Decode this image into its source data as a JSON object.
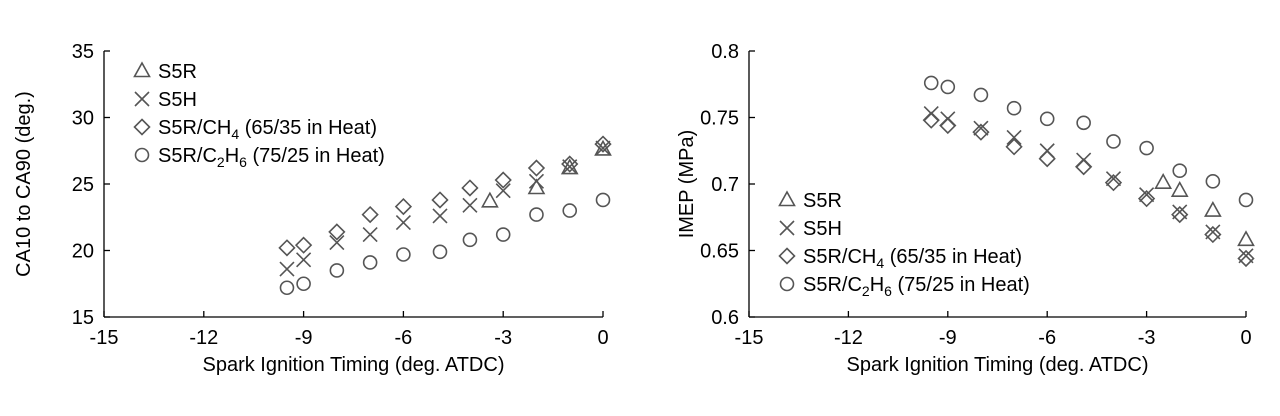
{
  "chart_data": [
    {
      "type": "scatter",
      "title": "",
      "xlabel": "Spark Ignition Timing (deg. ATDC)",
      "ylabel": "CA10 to CA90 (deg.)",
      "xlim": [
        -15,
        0
      ],
      "ylim": [
        15,
        35
      ],
      "xticks": [
        -15,
        -12,
        -9,
        -6,
        -3,
        0
      ],
      "yticks": [
        15,
        20,
        25,
        30,
        35
      ],
      "xtick_labels": [
        "-15",
        "-12",
        "-9",
        "-6",
        "-3",
        "0"
      ],
      "ytick_labels": [
        "15",
        "20",
        "25",
        "30",
        "35"
      ],
      "grid": false,
      "legend": {
        "placement": "top-left",
        "entries": [
          {
            "marker": "triangle",
            "base": "S5R",
            "sub": "",
            "rest": ""
          },
          {
            "marker": "x",
            "base": "S5H",
            "sub": "",
            "rest": ""
          },
          {
            "marker": "diamond",
            "base": "S5R/CH",
            "sub": "4",
            "rest": " (65/35 in Heat)"
          },
          {
            "marker": "circle",
            "base": "S5R/C",
            "sub": "2",
            "mid": "H",
            "sub2": "6",
            "rest": " (75/25 in Heat)"
          }
        ]
      },
      "series": [
        {
          "name": "S5R",
          "marker": "triangle",
          "points": [
            [
              -3.4,
              23.7
            ],
            [
              -2,
              24.7
            ],
            [
              -1,
              26.2
            ],
            [
              0,
              27.6
            ]
          ]
        },
        {
          "name": "S5H",
          "marker": "x",
          "points": [
            [
              -9.5,
              18.6
            ],
            [
              -9,
              19.3
            ],
            [
              -8,
              20.6
            ],
            [
              -7,
              21.2
            ],
            [
              -6,
              22.1
            ],
            [
              -4.9,
              22.6
            ],
            [
              -4,
              23.4
            ],
            [
              -3,
              24.5
            ],
            [
              -2,
              25.2
            ],
            [
              -1,
              26.3
            ],
            [
              0,
              27.7
            ]
          ]
        },
        {
          "name": "S5R/CH4 (65/35 in Heat)",
          "marker": "diamond",
          "points": [
            [
              -9.5,
              20.2
            ],
            [
              -9,
              20.4
            ],
            [
              -8,
              21.4
            ],
            [
              -7,
              22.7
            ],
            [
              -6,
              23.3
            ],
            [
              -4.9,
              23.8
            ],
            [
              -4,
              24.7
            ],
            [
              -3,
              25.3
            ],
            [
              -2,
              26.2
            ],
            [
              -1,
              26.5
            ],
            [
              0,
              28.0
            ]
          ]
        },
        {
          "name": "S5R/C2H6 (75/25 in Heat)",
          "marker": "circle",
          "points": [
            [
              -9.5,
              17.2
            ],
            [
              -9,
              17.5
            ],
            [
              -8,
              18.5
            ],
            [
              -7,
              19.1
            ],
            [
              -6,
              19.7
            ],
            [
              -4.9,
              19.9
            ],
            [
              -4,
              20.8
            ],
            [
              -3,
              21.2
            ],
            [
              -2,
              22.7
            ],
            [
              -1,
              23.0
            ],
            [
              0,
              23.8
            ]
          ]
        }
      ]
    },
    {
      "type": "scatter",
      "title": "",
      "xlabel": "Spark Ignition Timing (deg. ATDC)",
      "ylabel": "IMEP (MPa)",
      "xlim": [
        -15,
        0
      ],
      "ylim": [
        0.6,
        0.8
      ],
      "xticks": [
        -15,
        -12,
        -9,
        -6,
        -3,
        0
      ],
      "yticks": [
        0.6,
        0.65,
        0.7,
        0.75,
        0.8
      ],
      "xtick_labels": [
        "-15",
        "-12",
        "-9",
        "-6",
        "-3",
        "0"
      ],
      "ytick_labels": [
        "0.6",
        "0.65",
        "0.7",
        "0.75",
        "0.8"
      ],
      "grid": false,
      "legend": {
        "placement": "bottom-left",
        "entries": [
          {
            "marker": "triangle",
            "base": "S5R",
            "sub": "",
            "rest": ""
          },
          {
            "marker": "x",
            "base": "S5H",
            "sub": "",
            "rest": ""
          },
          {
            "marker": "diamond",
            "base": "S5R/CH",
            "sub": "4",
            "rest": " (65/35 in Heat)"
          },
          {
            "marker": "circle",
            "base": "S5R/C",
            "sub": "2",
            "mid": "H",
            "sub2": "6",
            "rest": " (75/25 in Heat)"
          }
        ]
      },
      "series": [
        {
          "name": "S5R",
          "marker": "triangle",
          "points": [
            [
              -2.5,
              0.701
            ],
            [
              -2,
              0.695
            ],
            [
              -1,
              0.68
            ],
            [
              0,
              0.658
            ]
          ]
        },
        {
          "name": "S5H",
          "marker": "x",
          "points": [
            [
              -9.5,
              0.753
            ],
            [
              -9,
              0.749
            ],
            [
              -8,
              0.742
            ],
            [
              -7,
              0.735
            ],
            [
              -6,
              0.725
            ],
            [
              -4.9,
              0.718
            ],
            [
              -4,
              0.704
            ],
            [
              -3,
              0.692
            ],
            [
              -2,
              0.679
            ],
            [
              -1,
              0.664
            ],
            [
              0,
              0.646
            ]
          ]
        },
        {
          "name": "S5R/CH4 (65/35 in Heat)",
          "marker": "diamond",
          "points": [
            [
              -9.5,
              0.748
            ],
            [
              -9,
              0.744
            ],
            [
              -8,
              0.739
            ],
            [
              -7,
              0.728
            ],
            [
              -6,
              0.719
            ],
            [
              -4.9,
              0.713
            ],
            [
              -4,
              0.701
            ],
            [
              -3,
              0.689
            ],
            [
              -2,
              0.677
            ],
            [
              -1,
              0.662
            ],
            [
              0,
              0.644
            ]
          ]
        },
        {
          "name": "S5R/C2H6 (75/25 in Heat)",
          "marker": "circle",
          "points": [
            [
              -9.5,
              0.776
            ],
            [
              -9,
              0.773
            ],
            [
              -8,
              0.767
            ],
            [
              -7,
              0.757
            ],
            [
              -6,
              0.749
            ],
            [
              -4.9,
              0.746
            ],
            [
              -4,
              0.732
            ],
            [
              -3,
              0.727
            ],
            [
              -2,
              0.71
            ],
            [
              -1,
              0.702
            ],
            [
              0,
              0.688
            ]
          ]
        }
      ]
    }
  ]
}
